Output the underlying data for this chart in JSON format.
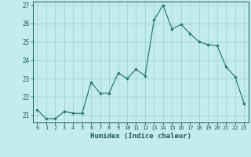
{
  "x": [
    0,
    1,
    2,
    3,
    4,
    5,
    6,
    7,
    8,
    9,
    10,
    11,
    12,
    13,
    14,
    15,
    16,
    17,
    18,
    19,
    20,
    21,
    22,
    23
  ],
  "y": [
    21.3,
    20.8,
    20.8,
    21.2,
    21.1,
    21.1,
    22.8,
    22.2,
    22.2,
    23.3,
    23.0,
    23.5,
    23.15,
    26.2,
    27.0,
    25.7,
    25.95,
    25.45,
    25.0,
    24.85,
    24.8,
    23.65,
    23.1,
    21.65
  ],
  "xlabel": "Humidex (Indice chaleur)",
  "xlim": [
    -0.5,
    23.5
  ],
  "ylim": [
    20.6,
    27.2
  ],
  "yticks": [
    21,
    22,
    23,
    24,
    25,
    26,
    27
  ],
  "xticks": [
    0,
    1,
    2,
    3,
    4,
    5,
    6,
    7,
    8,
    9,
    10,
    11,
    12,
    13,
    14,
    15,
    16,
    17,
    18,
    19,
    20,
    21,
    22,
    23
  ],
  "line_color": "#2e7d6e",
  "marker_color": "#2e7d6e",
  "bg_color": "#c5ecec",
  "grid_color": "#9dd4d4",
  "axis_label_color": "#1a5c52",
  "tick_color": "#1a5c52"
}
